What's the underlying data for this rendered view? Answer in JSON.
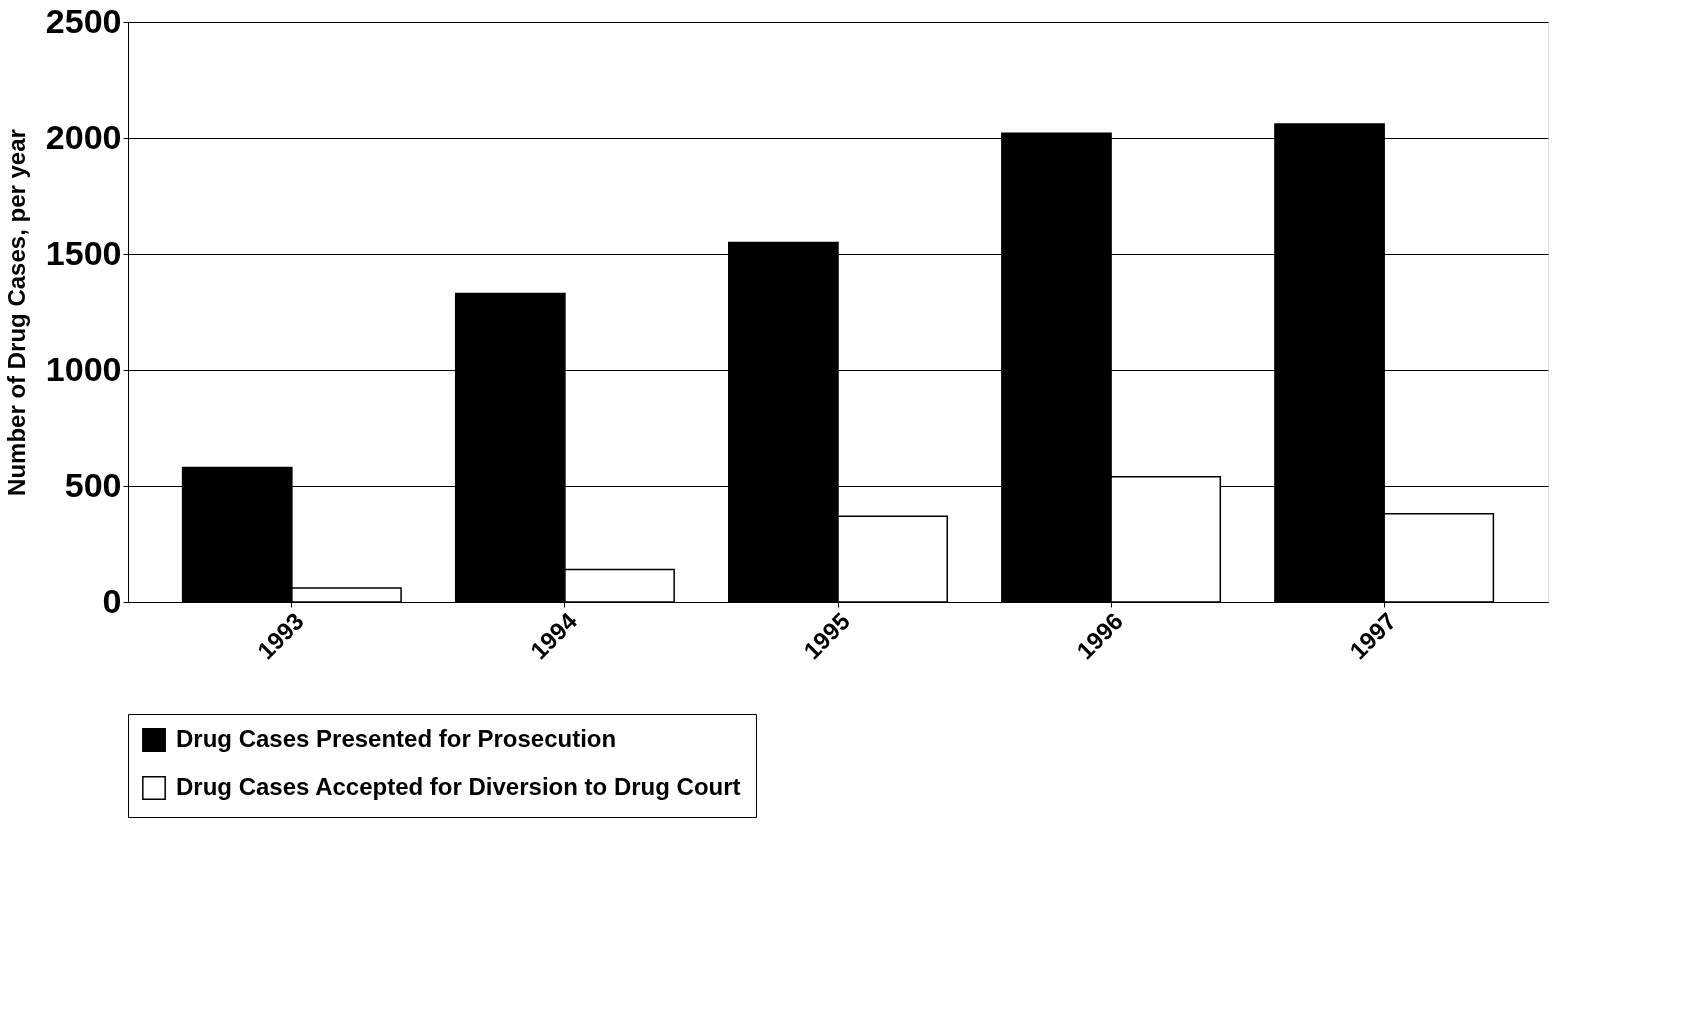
{
  "chart_data": {
    "type": "bar",
    "ylabel": "Number of  Drug Cases, per year",
    "categories": [
      "1993",
      "1994",
      "1995",
      "1996",
      "1997"
    ],
    "series": [
      {
        "name": "Drug Cases Presented for Prosecution",
        "color": "#000000",
        "values": [
          580,
          1330,
          1550,
          2020,
          2060
        ]
      },
      {
        "name": "Drug Cases Accepted for Diversion to Drug Court",
        "color": "#ffffff",
        "values": [
          60,
          140,
          370,
          540,
          380
        ]
      }
    ],
    "ylim": [
      0,
      2500
    ],
    "yticks": [
      0,
      500,
      1000,
      1500,
      2000,
      2500
    ],
    "grid": "y",
    "legend": "bottom"
  }
}
